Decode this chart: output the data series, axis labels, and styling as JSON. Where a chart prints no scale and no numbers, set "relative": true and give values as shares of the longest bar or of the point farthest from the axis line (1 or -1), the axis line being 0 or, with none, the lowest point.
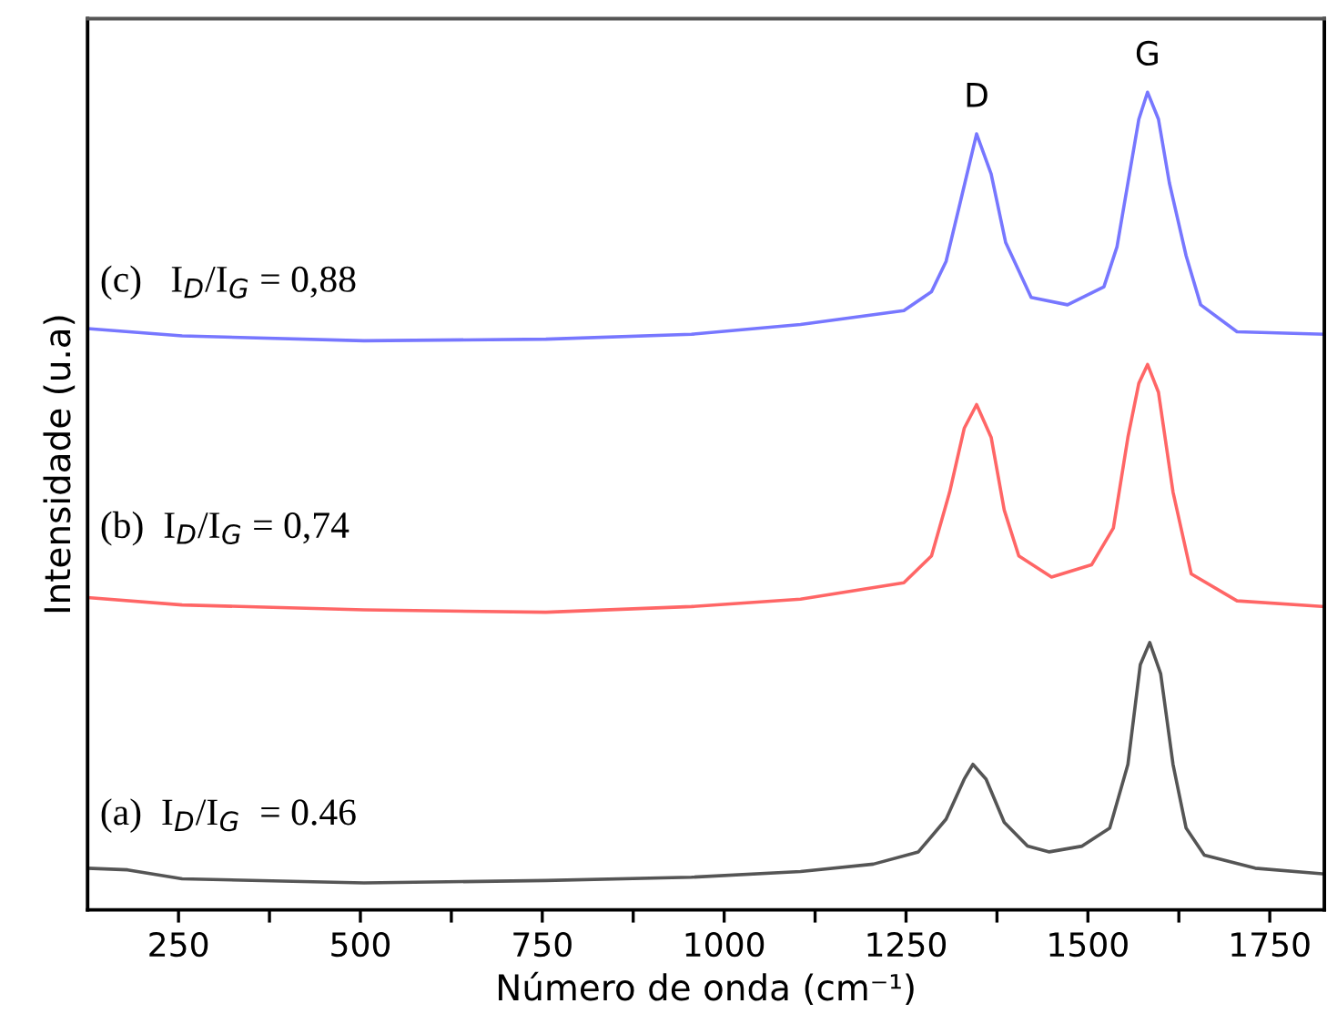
{
  "chart_data": {
    "type": "line",
    "relative": true,
    "xlabel": "Número de onda (cm⁻¹)",
    "ylabel": "Intensidade (u.a)",
    "xlim": [
      125,
      1825
    ],
    "xticks": [
      250,
      {
        "value": 375,
        "label": null
      },
      500,
      {
        "value": 625,
        "label": null
      },
      750,
      {
        "value": 875,
        "label": null
      },
      1000,
      {
        "value": 1125,
        "label": null
      },
      1250,
      {
        "value": 1375,
        "label": null
      },
      1500,
      {
        "value": 1625,
        "label": null
      },
      1750
    ],
    "grid": false,
    "marker": "none",
    "line_style": "solid",
    "tick_labels": "x",
    "series": [
      {
        "color": "#555555",
        "x": [
          125,
          180,
          255,
          505,
          755,
          955,
          1105,
          1205,
          1267,
          1305,
          1330,
          1342,
          1360,
          1385,
          1417,
          1447,
          1492,
          1530,
          1555,
          1572,
          1585,
          1600,
          1617,
          1635,
          1660,
          1730,
          1825
        ],
        "values": [
          0.051,
          0.049,
          0.038,
          0.033,
          0.036,
          0.04,
          0.047,
          0.056,
          0.071,
          0.111,
          0.16,
          0.178,
          0.16,
          0.107,
          0.078,
          0.071,
          0.078,
          0.1,
          0.178,
          0.3,
          0.327,
          0.289,
          0.178,
          0.1,
          0.067,
          0.051,
          0.044
        ]
      },
      {
        "color": "#ff6666",
        "x": [
          125,
          255,
          505,
          755,
          955,
          1105,
          1247,
          1285,
          1310,
          1330,
          1347,
          1367,
          1385,
          1405,
          1450,
          1505,
          1535,
          1555,
          1570,
          1582,
          1597,
          1617,
          1642,
          1705,
          1825
        ],
        "values": [
          0.382,
          0.373,
          0.367,
          0.364,
          0.371,
          0.38,
          0.4,
          0.433,
          0.511,
          0.589,
          0.618,
          0.578,
          0.489,
          0.433,
          0.407,
          0.422,
          0.467,
          0.578,
          0.644,
          0.667,
          0.633,
          0.511,
          0.411,
          0.378,
          0.371
        ]
      },
      {
        "color": "#7777ff",
        "x": [
          125,
          255,
          505,
          755,
          955,
          1105,
          1247,
          1285,
          1305,
          1325,
          1347,
          1367,
          1387,
          1422,
          1472,
          1522,
          1540,
          1555,
          1570,
          1582,
          1597,
          1612,
          1635,
          1655,
          1705,
          1825
        ],
        "values": [
          0.711,
          0.702,
          0.696,
          0.698,
          0.704,
          0.716,
          0.733,
          0.756,
          0.793,
          0.867,
          0.949,
          0.9,
          0.816,
          0.749,
          0.74,
          0.762,
          0.811,
          0.889,
          0.967,
          1,
          0.967,
          0.889,
          0.8,
          0.74,
          0.707,
          0.704
        ]
      }
    ],
    "annotations": [
      "(a)  I$_{D}$/I$_{G}$  = 0.46",
      "(b)  I$_{D}$/I$_{G}$ = 0,74",
      "(c)   I$_{D}$/I$_{G}$ = 0,88",
      {
        "text": "D",
        "x": 1347,
        "y": 0.949
      },
      {
        "text": "G",
        "x": 1582,
        "y": 1
      }
    ]
  }
}
